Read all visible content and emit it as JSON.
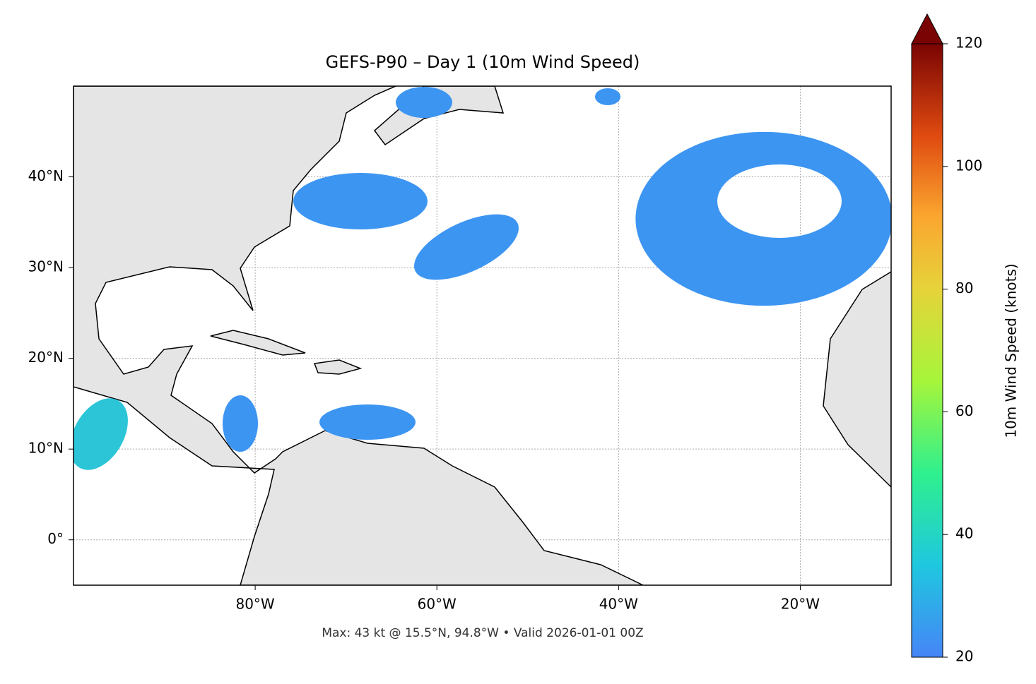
{
  "title": "GEFS-P90 – Day 1 (10m Wind Speed)",
  "map": {
    "xlim": [
      -100,
      -10
    ],
    "ylim": [
      -5,
      50
    ],
    "xticks": [
      {
        "value": -80,
        "label": "80°W"
      },
      {
        "value": -60,
        "label": "60°W"
      },
      {
        "value": -40,
        "label": "40°W"
      },
      {
        "value": -20,
        "label": "20°W"
      }
    ],
    "yticks": [
      {
        "value": 0,
        "label": "0°"
      },
      {
        "value": 10,
        "label": "10°N"
      },
      {
        "value": 20,
        "label": "20°N"
      },
      {
        "value": 30,
        "label": "30°N"
      },
      {
        "value": 40,
        "label": "40°N"
      }
    ],
    "grid": true
  },
  "colorbar": {
    "label": "10m Wind Speed (knots)",
    "lim": [
      20,
      120
    ],
    "ticks": [
      20,
      40,
      60,
      80,
      100,
      120
    ]
  },
  "note": "Max: 43 kt @ 15.5°N, 94.8°W • Valid 2026-01-01 00Z"
}
